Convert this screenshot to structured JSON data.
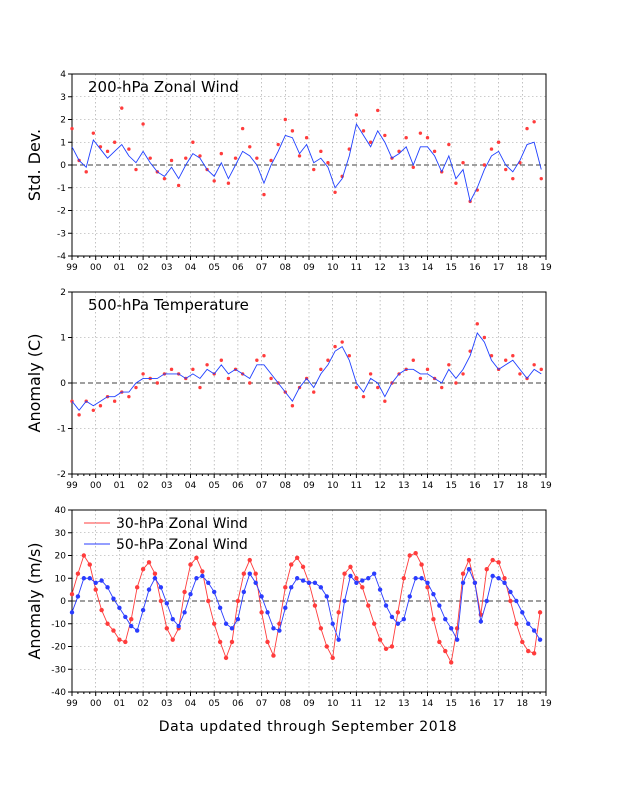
{
  "footer": "Data updated through September 2018",
  "colors": {
    "red": "#ff3c3c",
    "blue": "#2a3cff",
    "line_blue": "#2040ff",
    "grid": "#999999",
    "axis": "#000000"
  },
  "chart_data": [
    {
      "type": "scatter",
      "title": "200-hPa Zonal Wind",
      "ylabel": "Std. Dev.",
      "xlim": [
        1999,
        2019
      ],
      "ylim": [
        -4,
        4
      ],
      "yticks": [
        -4,
        -3,
        -2,
        -1,
        0,
        1,
        2,
        3,
        4
      ],
      "xtick_labels": [
        "99",
        "00",
        "01",
        "02",
        "03",
        "04",
        "05",
        "06",
        "07",
        "08",
        "09",
        "10",
        "11",
        "12",
        "13",
        "14",
        "15",
        "16",
        "17",
        "18",
        "19"
      ],
      "grid": true,
      "zero_line": "dashed",
      "series": [
        {
          "style": "points",
          "color": "red",
          "x": [
            1999.0,
            1999.3,
            1999.6,
            1999.9,
            2000.2,
            2000.5,
            2000.8,
            2001.1,
            2001.4,
            2001.7,
            2002.0,
            2002.3,
            2002.6,
            2002.9,
            2003.2,
            2003.5,
            2003.8,
            2004.1,
            2004.4,
            2004.7,
            2005.0,
            2005.3,
            2005.6,
            2005.9,
            2006.2,
            2006.5,
            2006.8,
            2007.1,
            2007.4,
            2007.7,
            2008.0,
            2008.3,
            2008.6,
            2008.9,
            2009.2,
            2009.5,
            2009.8,
            2010.1,
            2010.4,
            2010.7,
            2011.0,
            2011.3,
            2011.6,
            2011.9,
            2012.2,
            2012.5,
            2012.8,
            2013.1,
            2013.4,
            2013.7,
            2014.0,
            2014.3,
            2014.6,
            2014.9,
            2015.2,
            2015.5,
            2015.8,
            2016.1,
            2016.4,
            2016.7,
            2017.0,
            2017.3,
            2017.6,
            2017.9,
            2018.2,
            2018.5,
            2018.8
          ],
          "y": [
            1.6,
            0.2,
            -0.3,
            1.4,
            0.8,
            0.6,
            1.0,
            2.5,
            0.7,
            -0.2,
            1.8,
            0.3,
            -0.3,
            -0.6,
            0.2,
            -0.9,
            0.3,
            1.0,
            0.4,
            -0.2,
            -0.7,
            0.5,
            -0.8,
            0.3,
            1.6,
            0.8,
            0.3,
            -1.3,
            0.2,
            0.9,
            2.0,
            1.5,
            0.4,
            1.2,
            -0.2,
            0.6,
            0.1,
            -1.2,
            -0.5,
            0.7,
            2.2,
            1.5,
            1.0,
            2.4,
            1.3,
            0.3,
            0.6,
            1.2,
            -0.1,
            1.4,
            1.2,
            0.6,
            -0.3,
            0.9,
            -0.8,
            0.1,
            -1.6,
            -1.1,
            0.0,
            0.7,
            1.0,
            -0.2,
            -0.6,
            0.1,
            1.6,
            1.9,
            -0.6
          ]
        },
        {
          "style": "line",
          "color": "blue",
          "x": [
            1999.0,
            1999.3,
            1999.6,
            1999.9,
            2000.2,
            2000.5,
            2000.8,
            2001.1,
            2001.4,
            2001.7,
            2002.0,
            2002.3,
            2002.6,
            2002.9,
            2003.2,
            2003.5,
            2003.8,
            2004.1,
            2004.4,
            2004.7,
            2005.0,
            2005.3,
            2005.6,
            2005.9,
            2006.2,
            2006.5,
            2006.8,
            2007.1,
            2007.4,
            2007.7,
            2008.0,
            2008.3,
            2008.6,
            2008.9,
            2009.2,
            2009.5,
            2009.8,
            2010.1,
            2010.4,
            2010.7,
            2011.0,
            2011.3,
            2011.6,
            2011.9,
            2012.2,
            2012.5,
            2012.8,
            2013.1,
            2013.4,
            2013.7,
            2014.0,
            2014.3,
            2014.6,
            2014.9,
            2015.2,
            2015.5,
            2015.8,
            2016.1,
            2016.4,
            2016.7,
            2017.0,
            2017.3,
            2017.6,
            2017.9,
            2018.2,
            2018.5,
            2018.8
          ],
          "y": [
            0.8,
            0.2,
            -0.1,
            1.1,
            0.7,
            0.3,
            0.6,
            0.9,
            0.4,
            0.1,
            0.6,
            0.1,
            -0.3,
            -0.5,
            -0.1,
            -0.6,
            0.0,
            0.5,
            0.3,
            -0.2,
            -0.5,
            0.1,
            -0.6,
            0.0,
            0.6,
            0.4,
            0.0,
            -0.8,
            0.0,
            0.6,
            1.3,
            1.2,
            0.5,
            0.9,
            0.1,
            0.3,
            -0.1,
            -1.0,
            -0.6,
            0.4,
            1.8,
            1.3,
            0.8,
            1.5,
            1.0,
            0.3,
            0.5,
            0.8,
            0.0,
            0.8,
            0.8,
            0.4,
            -0.3,
            0.4,
            -0.6,
            -0.2,
            -1.6,
            -1.0,
            -0.2,
            0.4,
            0.6,
            0.0,
            -0.3,
            0.2,
            0.9,
            1.0,
            -0.2
          ]
        }
      ]
    },
    {
      "type": "scatter",
      "title": "500-hPa Temperature",
      "ylabel": "Anomaly (C)",
      "xlim": [
        1999,
        2019
      ],
      "ylim": [
        -2,
        2
      ],
      "yticks": [
        -2,
        -1,
        0,
        1,
        2
      ],
      "xtick_labels": [
        "99",
        "00",
        "01",
        "02",
        "03",
        "04",
        "05",
        "06",
        "07",
        "08",
        "09",
        "10",
        "11",
        "12",
        "13",
        "14",
        "15",
        "16",
        "17",
        "18",
        "19"
      ],
      "grid": true,
      "zero_line": "dashed",
      "series": [
        {
          "style": "points",
          "color": "red",
          "x": [
            1999.0,
            1999.3,
            1999.6,
            1999.9,
            2000.2,
            2000.5,
            2000.8,
            2001.1,
            2001.4,
            2001.7,
            2002.0,
            2002.3,
            2002.6,
            2002.9,
            2003.2,
            2003.5,
            2003.8,
            2004.1,
            2004.4,
            2004.7,
            2005.0,
            2005.3,
            2005.6,
            2005.9,
            2006.2,
            2006.5,
            2006.8,
            2007.1,
            2007.4,
            2007.7,
            2008.0,
            2008.3,
            2008.6,
            2008.9,
            2009.2,
            2009.5,
            2009.8,
            2010.1,
            2010.4,
            2010.7,
            2011.0,
            2011.3,
            2011.6,
            2011.9,
            2012.2,
            2012.5,
            2012.8,
            2013.1,
            2013.4,
            2013.7,
            2014.0,
            2014.3,
            2014.6,
            2014.9,
            2015.2,
            2015.5,
            2015.8,
            2016.1,
            2016.4,
            2016.7,
            2017.0,
            2017.3,
            2017.6,
            2017.9,
            2018.2,
            2018.5,
            2018.8
          ],
          "y": [
            -0.4,
            -0.7,
            -0.4,
            -0.6,
            -0.5,
            -0.3,
            -0.4,
            -0.2,
            -0.3,
            -0.1,
            0.2,
            0.1,
            0.0,
            0.2,
            0.3,
            0.2,
            0.1,
            0.3,
            -0.1,
            0.4,
            0.2,
            0.5,
            0.1,
            0.3,
            0.2,
            0.0,
            0.5,
            0.6,
            0.1,
            0.0,
            -0.2,
            -0.5,
            -0.1,
            0.1,
            -0.2,
            0.3,
            0.5,
            0.8,
            0.9,
            0.6,
            -0.1,
            -0.3,
            0.2,
            -0.1,
            -0.4,
            0.0,
            0.2,
            0.3,
            0.5,
            0.1,
            0.3,
            0.1,
            -0.1,
            0.4,
            0.0,
            0.2,
            0.7,
            1.3,
            1.0,
            0.6,
            0.3,
            0.5,
            0.6,
            0.2,
            0.1,
            0.4,
            0.3
          ]
        },
        {
          "style": "line",
          "color": "blue",
          "x": [
            1999.0,
            1999.3,
            1999.6,
            1999.9,
            2000.2,
            2000.5,
            2000.8,
            2001.1,
            2001.4,
            2001.7,
            2002.0,
            2002.3,
            2002.6,
            2002.9,
            2003.2,
            2003.5,
            2003.8,
            2004.1,
            2004.4,
            2004.7,
            2005.0,
            2005.3,
            2005.6,
            2005.9,
            2006.2,
            2006.5,
            2006.8,
            2007.1,
            2007.4,
            2007.7,
            2008.0,
            2008.3,
            2008.6,
            2008.9,
            2009.2,
            2009.5,
            2009.8,
            2010.1,
            2010.4,
            2010.7,
            2011.0,
            2011.3,
            2011.6,
            2011.9,
            2012.2,
            2012.5,
            2012.8,
            2013.1,
            2013.4,
            2013.7,
            2014.0,
            2014.3,
            2014.6,
            2014.9,
            2015.2,
            2015.5,
            2015.8,
            2016.1,
            2016.4,
            2016.7,
            2017.0,
            2017.3,
            2017.6,
            2017.9,
            2018.2,
            2018.5,
            2018.8
          ],
          "y": [
            -0.4,
            -0.6,
            -0.4,
            -0.5,
            -0.4,
            -0.3,
            -0.3,
            -0.2,
            -0.2,
            0.0,
            0.1,
            0.1,
            0.1,
            0.2,
            0.2,
            0.2,
            0.1,
            0.2,
            0.1,
            0.3,
            0.2,
            0.4,
            0.2,
            0.3,
            0.2,
            0.1,
            0.4,
            0.4,
            0.2,
            0.0,
            -0.2,
            -0.4,
            -0.1,
            0.1,
            -0.1,
            0.2,
            0.4,
            0.7,
            0.8,
            0.5,
            0.0,
            -0.2,
            0.1,
            0.0,
            -0.3,
            0.0,
            0.2,
            0.3,
            0.3,
            0.2,
            0.2,
            0.1,
            0.0,
            0.3,
            0.1,
            0.3,
            0.6,
            1.1,
            0.9,
            0.5,
            0.3,
            0.4,
            0.5,
            0.3,
            0.1,
            0.3,
            0.2
          ]
        }
      ]
    },
    {
      "type": "line",
      "ylabel": "Anomaly (m/s)",
      "xlim": [
        1999,
        2019
      ],
      "ylim": [
        -40,
        40
      ],
      "yticks": [
        -40,
        -30,
        -20,
        -10,
        0,
        10,
        20,
        30,
        40
      ],
      "xtick_labels": [
        "99",
        "00",
        "01",
        "02",
        "03",
        "04",
        "05",
        "06",
        "07",
        "08",
        "09",
        "10",
        "11",
        "12",
        "13",
        "14",
        "15",
        "16",
        "17",
        "18",
        "19"
      ],
      "grid": true,
      "zero_line": "dashed",
      "legend_position": "top-left",
      "series": [
        {
          "name": "30-hPa Zonal Wind",
          "color": "red",
          "x": [
            1999.0,
            1999.25,
            1999.5,
            1999.75,
            2000.0,
            2000.25,
            2000.5,
            2000.75,
            2001.0,
            2001.25,
            2001.5,
            2001.75,
            2002.0,
            2002.25,
            2002.5,
            2002.75,
            2003.0,
            2003.25,
            2003.5,
            2003.75,
            2004.0,
            2004.25,
            2004.5,
            2004.75,
            2005.0,
            2005.25,
            2005.5,
            2005.75,
            2006.0,
            2006.25,
            2006.5,
            2006.75,
            2007.0,
            2007.25,
            2007.5,
            2007.75,
            2008.0,
            2008.25,
            2008.5,
            2008.75,
            2009.0,
            2009.25,
            2009.5,
            2009.75,
            2010.0,
            2010.25,
            2010.5,
            2010.75,
            2011.0,
            2011.25,
            2011.5,
            2011.75,
            2012.0,
            2012.25,
            2012.5,
            2012.75,
            2013.0,
            2013.25,
            2013.5,
            2013.75,
            2014.0,
            2014.25,
            2014.5,
            2014.75,
            2015.0,
            2015.25,
            2015.5,
            2015.75,
            2016.0,
            2016.25,
            2016.5,
            2016.75,
            2017.0,
            2017.25,
            2017.5,
            2017.75,
            2018.0,
            2018.25,
            2018.5,
            2018.75
          ],
          "y": [
            3,
            12,
            20,
            16,
            5,
            -4,
            -10,
            -13,
            -17,
            -18,
            -8,
            6,
            14,
            17,
            12,
            0,
            -12,
            -17,
            -12,
            4,
            16,
            19,
            13,
            0,
            -10,
            -18,
            -25,
            -18,
            0,
            12,
            18,
            12,
            -5,
            -18,
            -24,
            -10,
            6,
            16,
            19,
            15,
            8,
            -2,
            -12,
            -20,
            -25,
            -5,
            12,
            15,
            10,
            6,
            -2,
            -10,
            -17,
            -21,
            -20,
            -5,
            10,
            20,
            21,
            16,
            6,
            -8,
            -18,
            -22,
            -27,
            -12,
            12,
            18,
            8,
            -6,
            14,
            18,
            17,
            10,
            0,
            -10,
            -18,
            -22,
            -23,
            -5
          ]
        },
        {
          "name": "50-hPa Zonal Wind",
          "color": "blue",
          "x": [
            1999.0,
            1999.25,
            1999.5,
            1999.75,
            2000.0,
            2000.25,
            2000.5,
            2000.75,
            2001.0,
            2001.25,
            2001.5,
            2001.75,
            2002.0,
            2002.25,
            2002.5,
            2002.75,
            2003.0,
            2003.25,
            2003.5,
            2003.75,
            2004.0,
            2004.25,
            2004.5,
            2004.75,
            2005.0,
            2005.25,
            2005.5,
            2005.75,
            2006.0,
            2006.25,
            2006.5,
            2006.75,
            2007.0,
            2007.25,
            2007.5,
            2007.75,
            2008.0,
            2008.25,
            2008.5,
            2008.75,
            2009.0,
            2009.25,
            2009.5,
            2009.75,
            2010.0,
            2010.25,
            2010.5,
            2010.75,
            2011.0,
            2011.25,
            2011.5,
            2011.75,
            2012.0,
            2012.25,
            2012.5,
            2012.75,
            2013.0,
            2013.25,
            2013.5,
            2013.75,
            2014.0,
            2014.25,
            2014.5,
            2014.75,
            2015.0,
            2015.25,
            2015.5,
            2015.75,
            2016.0,
            2016.25,
            2016.5,
            2016.75,
            2017.0,
            2017.25,
            2017.5,
            2017.75,
            2018.0,
            2018.25,
            2018.5,
            2018.75
          ],
          "y": [
            -5,
            2,
            10,
            10,
            8,
            9,
            6,
            1,
            -3,
            -7,
            -11,
            -13,
            -4,
            5,
            10,
            6,
            -1,
            -8,
            -11,
            -5,
            3,
            10,
            11,
            8,
            4,
            -3,
            -10,
            -12,
            -8,
            4,
            12,
            8,
            2,
            -5,
            -12,
            -13,
            -3,
            6,
            10,
            9,
            8,
            8,
            6,
            2,
            -10,
            -17,
            0,
            11,
            8,
            9,
            10,
            12,
            5,
            -2,
            -7,
            -10,
            -8,
            2,
            10,
            10,
            8,
            3,
            -2,
            -8,
            -12,
            -17,
            8,
            14,
            8,
            -9,
            0,
            11,
            10,
            8,
            4,
            0,
            -5,
            -10,
            -13,
            -17
          ]
        }
      ]
    }
  ]
}
